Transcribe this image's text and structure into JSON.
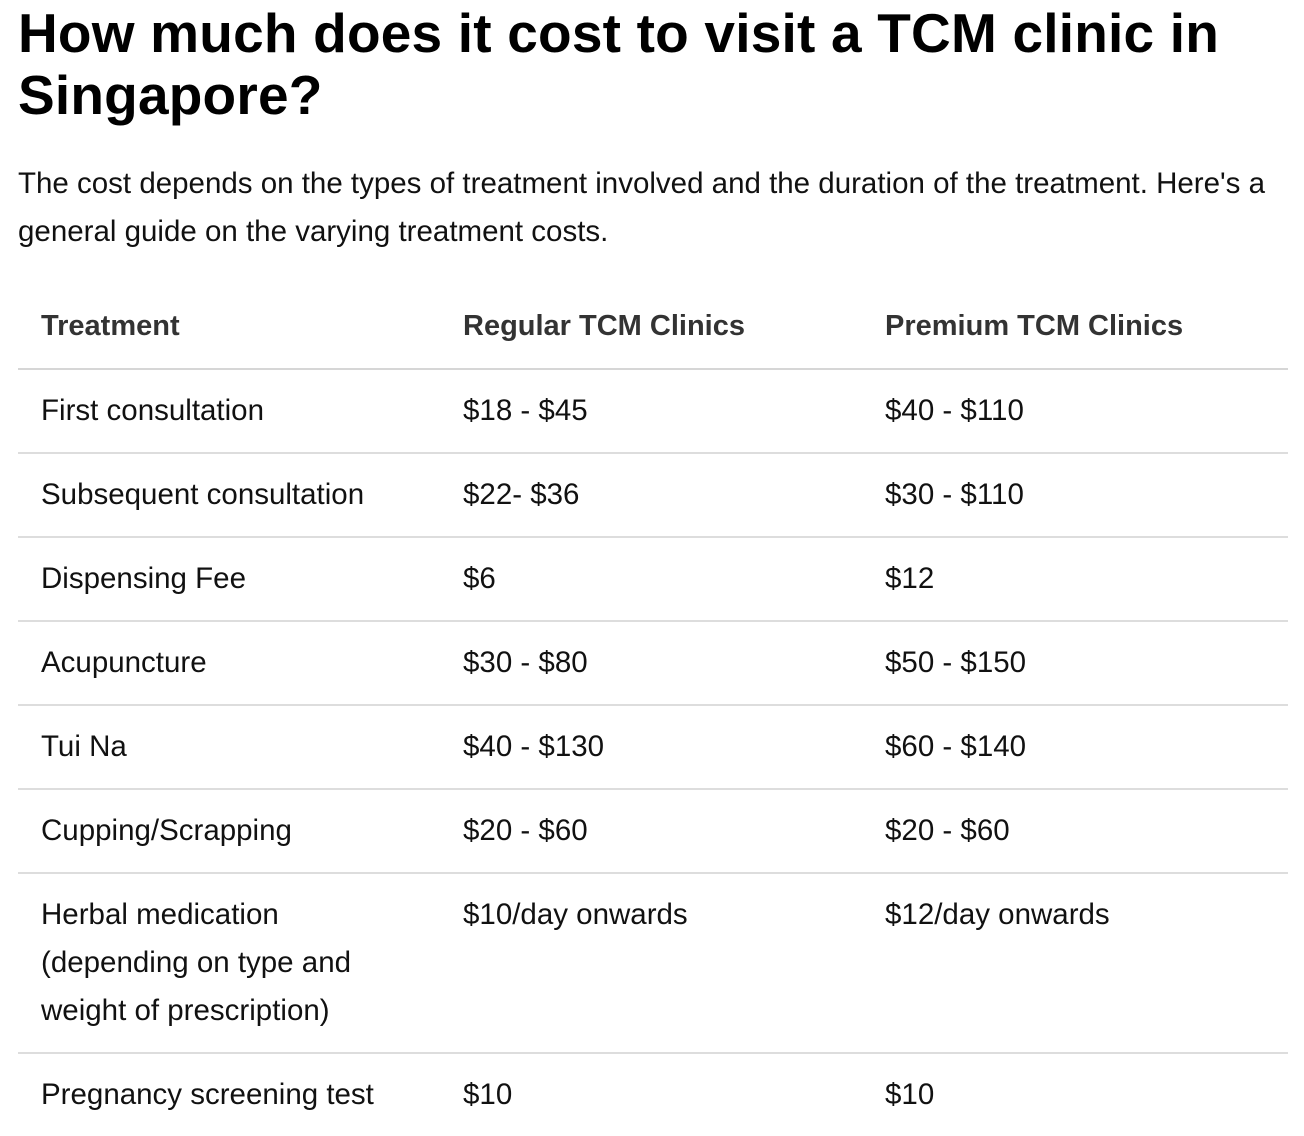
{
  "heading": "How much does it cost to visit a TCM clinic in Singapore?",
  "intro": "The cost depends on the types of treatment involved and the duration of the treatment. Here's a general guide on the varying treatment costs.",
  "table": {
    "headers": [
      "Treatment",
      "Regular TCM Clinics",
      "Premium TCM Clinics"
    ],
    "rows": [
      [
        "First consultation",
        "$18 - $45",
        "$40 - $110"
      ],
      [
        "Subsequent consultation",
        "$22- $36",
        "$30 - $110"
      ],
      [
        "Dispensing Fee",
        "$6",
        "$12"
      ],
      [
        "Acupuncture",
        "$30 - $80",
        "$50 - $150"
      ],
      [
        "Tui Na",
        "$40 - $130",
        "$60 - $140"
      ],
      [
        "Cupping/Scrapping",
        "$20 - $60",
        "$20 - $60"
      ],
      [
        "Herbal medication (depending on type and weight of prescription)",
        "$10/day onwards",
        "$12/day onwards"
      ],
      [
        "Pregnancy screening test",
        "$10",
        "$10"
      ]
    ]
  }
}
